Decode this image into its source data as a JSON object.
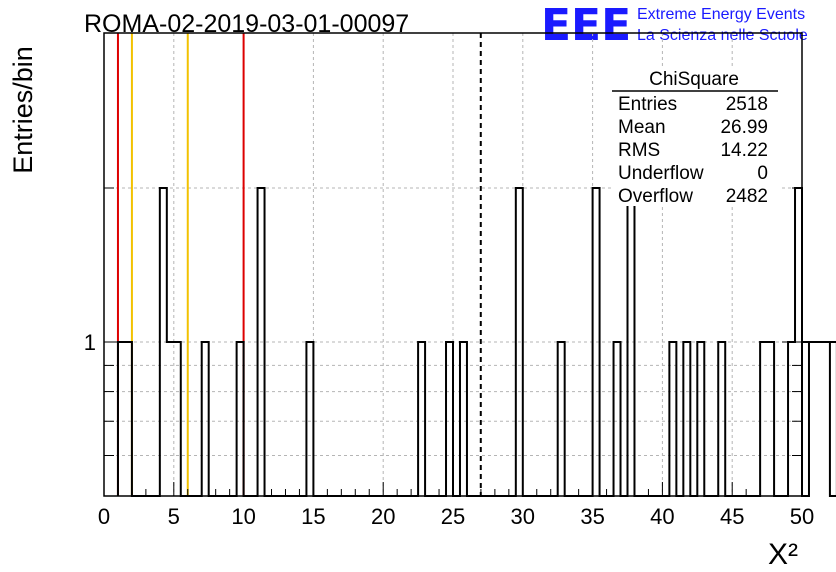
{
  "chart_data": {
    "type": "bar",
    "title": "ROMA-02-2019-03-01-00097",
    "xlabel": "X²",
    "ylabel": "Entries/bin",
    "xlim": [
      0,
      50
    ],
    "y_scale": "log",
    "y_tick_labels": [
      "1"
    ],
    "x_ticks": [
      0,
      5,
      10,
      15,
      20,
      25,
      30,
      35,
      40,
      45,
      50
    ],
    "grid": true,
    "bin_width": 0.5,
    "bin_start": 1.0,
    "bin_counts": [
      1,
      1,
      0,
      0,
      0,
      0,
      2,
      1,
      1,
      0,
      0,
      0,
      1,
      0,
      0,
      0,
      0,
      1,
      0,
      0,
      2,
      0,
      0,
      0,
      0,
      0,
      0,
      1,
      0,
      0,
      0,
      0,
      0,
      0,
      0,
      0,
      0,
      0,
      0,
      0,
      0,
      0,
      0,
      1,
      0,
      0,
      0,
      1,
      0,
      1,
      0,
      0,
      0,
      0,
      0,
      0,
      0,
      2,
      0,
      0,
      0,
      0,
      0,
      1,
      0,
      0,
      0,
      0,
      2,
      0,
      0,
      1,
      0,
      2,
      0,
      0,
      0,
      0,
      0,
      1,
      0,
      1,
      0,
      1,
      0,
      0,
      1,
      0,
      0,
      0,
      0,
      0,
      1,
      1,
      0,
      0,
      1,
      2,
      0,
      1,
      1,
      1,
      0,
      1
    ],
    "vertical_lines": [
      {
        "x": 1.0,
        "color": "#dd0000"
      },
      {
        "x": 2.0,
        "color": "#f2c200"
      },
      {
        "x": 6.0,
        "color": "#f2c200"
      },
      {
        "x": 10.0,
        "color": "#dd0000"
      },
      {
        "x": 26.99,
        "color": "#000000",
        "style": "dashed"
      }
    ],
    "stats_box": {
      "title": "ChiSquare",
      "rows": [
        {
          "label": "Entries",
          "value": "2518"
        },
        {
          "label": "Mean",
          "value": "26.99"
        },
        {
          "label": "RMS",
          "value": "14.22"
        },
        {
          "label": "Underflow",
          "value": "0"
        },
        {
          "label": "Overflow",
          "value": "2482"
        }
      ]
    }
  },
  "logo": {
    "mark": "EEE",
    "line1": "Extreme Energy Events",
    "line2": "La Scienza nelle Scuole",
    "color": "#1a1aff"
  }
}
